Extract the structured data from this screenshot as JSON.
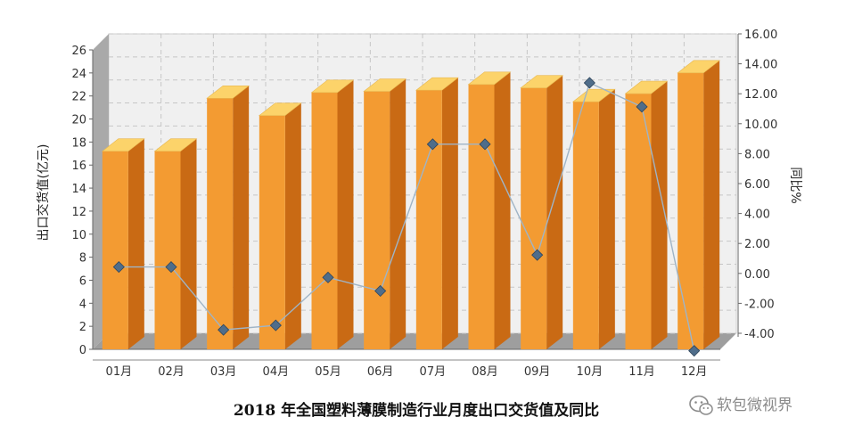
{
  "chart_data": {
    "type": "bar",
    "title": "2018 年全国塑料薄膜制造行业月度出口交货值及同比",
    "categories": [
      "01月",
      "02月",
      "03月",
      "04月",
      "05月",
      "06月",
      "07月",
      "08月",
      "09月",
      "10月",
      "11月",
      "12月"
    ],
    "ylabel": "出口交货值(亿元)",
    "y2label": "同比%",
    "ylim": [
      0,
      26
    ],
    "y_ticks": [
      "0",
      "2",
      "4",
      "6",
      "8",
      "10",
      "12",
      "14",
      "16",
      "18",
      "20",
      "22",
      "24",
      "26"
    ],
    "y2lim": [
      -4,
      16
    ],
    "y2_ticks": [
      "-4.00",
      "-2.00",
      "0.00",
      "2.00",
      "4.00",
      "6.00",
      "8.00",
      "10.00",
      "12.00",
      "14.00",
      "16.00"
    ],
    "grid": true,
    "series": [
      {
        "type": "bar",
        "axis": "left",
        "values": [
          17.2,
          17.2,
          21.8,
          20.3,
          22.3,
          22.4,
          22.5,
          23.0,
          22.7,
          21.5,
          22.2,
          24.0
        ]
      },
      {
        "type": "line",
        "axis": "right",
        "values": [
          1.5,
          1.5,
          -2.7,
          -2.4,
          0.8,
          -0.1,
          9.7,
          9.7,
          2.3,
          13.8,
          12.2,
          -4.1
        ]
      }
    ],
    "colors": {
      "bar_front": "#f39b32",
      "bar_top": "#fcd36a",
      "bar_side": "#c96a14",
      "line": "#9fb4c6",
      "marker": "#4f6d8a",
      "wall": "#f0f0f0",
      "grid": "#c6c6c6"
    }
  },
  "watermark": {
    "icon": "wechat-icon",
    "text": "软包微视界"
  }
}
